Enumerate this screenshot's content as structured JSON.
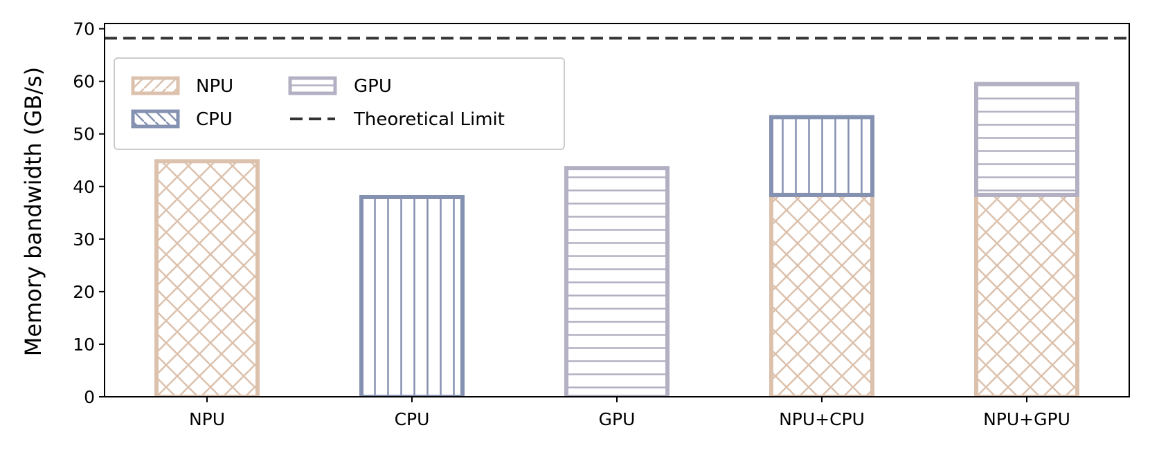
{
  "chart_data": {
    "type": "bar",
    "categories": [
      "NPU",
      "CPU",
      "GPU",
      "NPU+CPU",
      "NPU+GPU"
    ],
    "series": [
      {
        "name": "NPU",
        "values": [
          44.8,
          0,
          0,
          38.4,
          38.4
        ]
      },
      {
        "name": "CPU",
        "values": [
          0,
          38.0,
          0,
          14.8,
          0
        ]
      },
      {
        "name": "GPU",
        "values": [
          0,
          0,
          43.5,
          0,
          21.1
        ]
      }
    ],
    "reference_line": {
      "name": "Theoretical Limit",
      "value": 68.2
    },
    "xlabel": "",
    "ylabel": "Memory bandwidth (GB/s)",
    "ylim": [
      0,
      71
    ],
    "yticks": [
      0,
      10,
      20,
      30,
      40,
      50,
      60,
      70
    ],
    "grid": false,
    "legend_position": "top-left",
    "colors": {
      "NPU": "#dcc1ad",
      "CPU": "#8491b1",
      "GPU": "#b3b0c3",
      "limit": "#333333"
    },
    "hatches": {
      "NPU": "crosshatch",
      "CPU": "vertical",
      "GPU": "horizontal"
    },
    "legend": [
      {
        "label": "NPU",
        "kind": "bar",
        "series": "NPU"
      },
      {
        "label": "CPU",
        "kind": "bar",
        "series": "CPU"
      },
      {
        "label": "GPU",
        "kind": "bar",
        "series": "GPU"
      },
      {
        "label": "Theoretical Limit",
        "kind": "dashed-line"
      }
    ]
  }
}
